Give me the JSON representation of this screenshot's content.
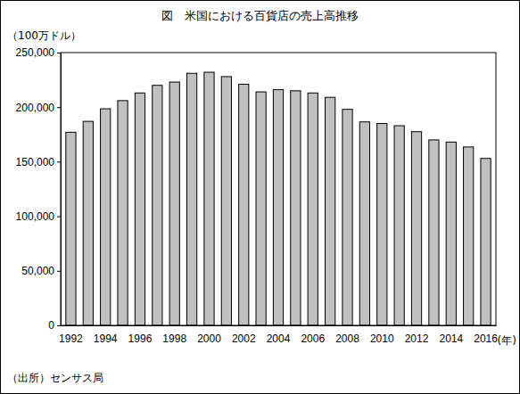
{
  "chart_data": {
    "type": "bar",
    "title": "図　米国における百貨店の売上高推移",
    "y_label": "（100万ドル）",
    "x_label": "(年)",
    "source": "（出所）センサス局",
    "categories": [
      "1992",
      null,
      "1994",
      null,
      "1996",
      null,
      "1998",
      null,
      "2000",
      null,
      "2002",
      null,
      "2004",
      null,
      "2006",
      null,
      "2008",
      null,
      "2010",
      null,
      "2012",
      null,
      "2014",
      null,
      "2016"
    ],
    "values": [
      177000,
      187000,
      198500,
      206000,
      213000,
      220000,
      223000,
      231000,
      232000,
      228000,
      221000,
      214000,
      216000,
      215000,
      213000,
      209000,
      198000,
      186500,
      185000,
      183000,
      177500,
      170000,
      168000,
      163500,
      153000
    ],
    "color": "#c0c0c0",
    "ylim": [
      0,
      250000
    ],
    "yticks": [
      0,
      {
        "value": 50000,
        "label": "50,000"
      },
      {
        "value": 100000,
        "label": "100,000"
      },
      {
        "value": 150000,
        "label": "150,000"
      },
      {
        "value": 200000,
        "label": "200,000"
      },
      {
        "value": 250000,
        "label": "250,000"
      }
    ],
    "grid": false
  }
}
